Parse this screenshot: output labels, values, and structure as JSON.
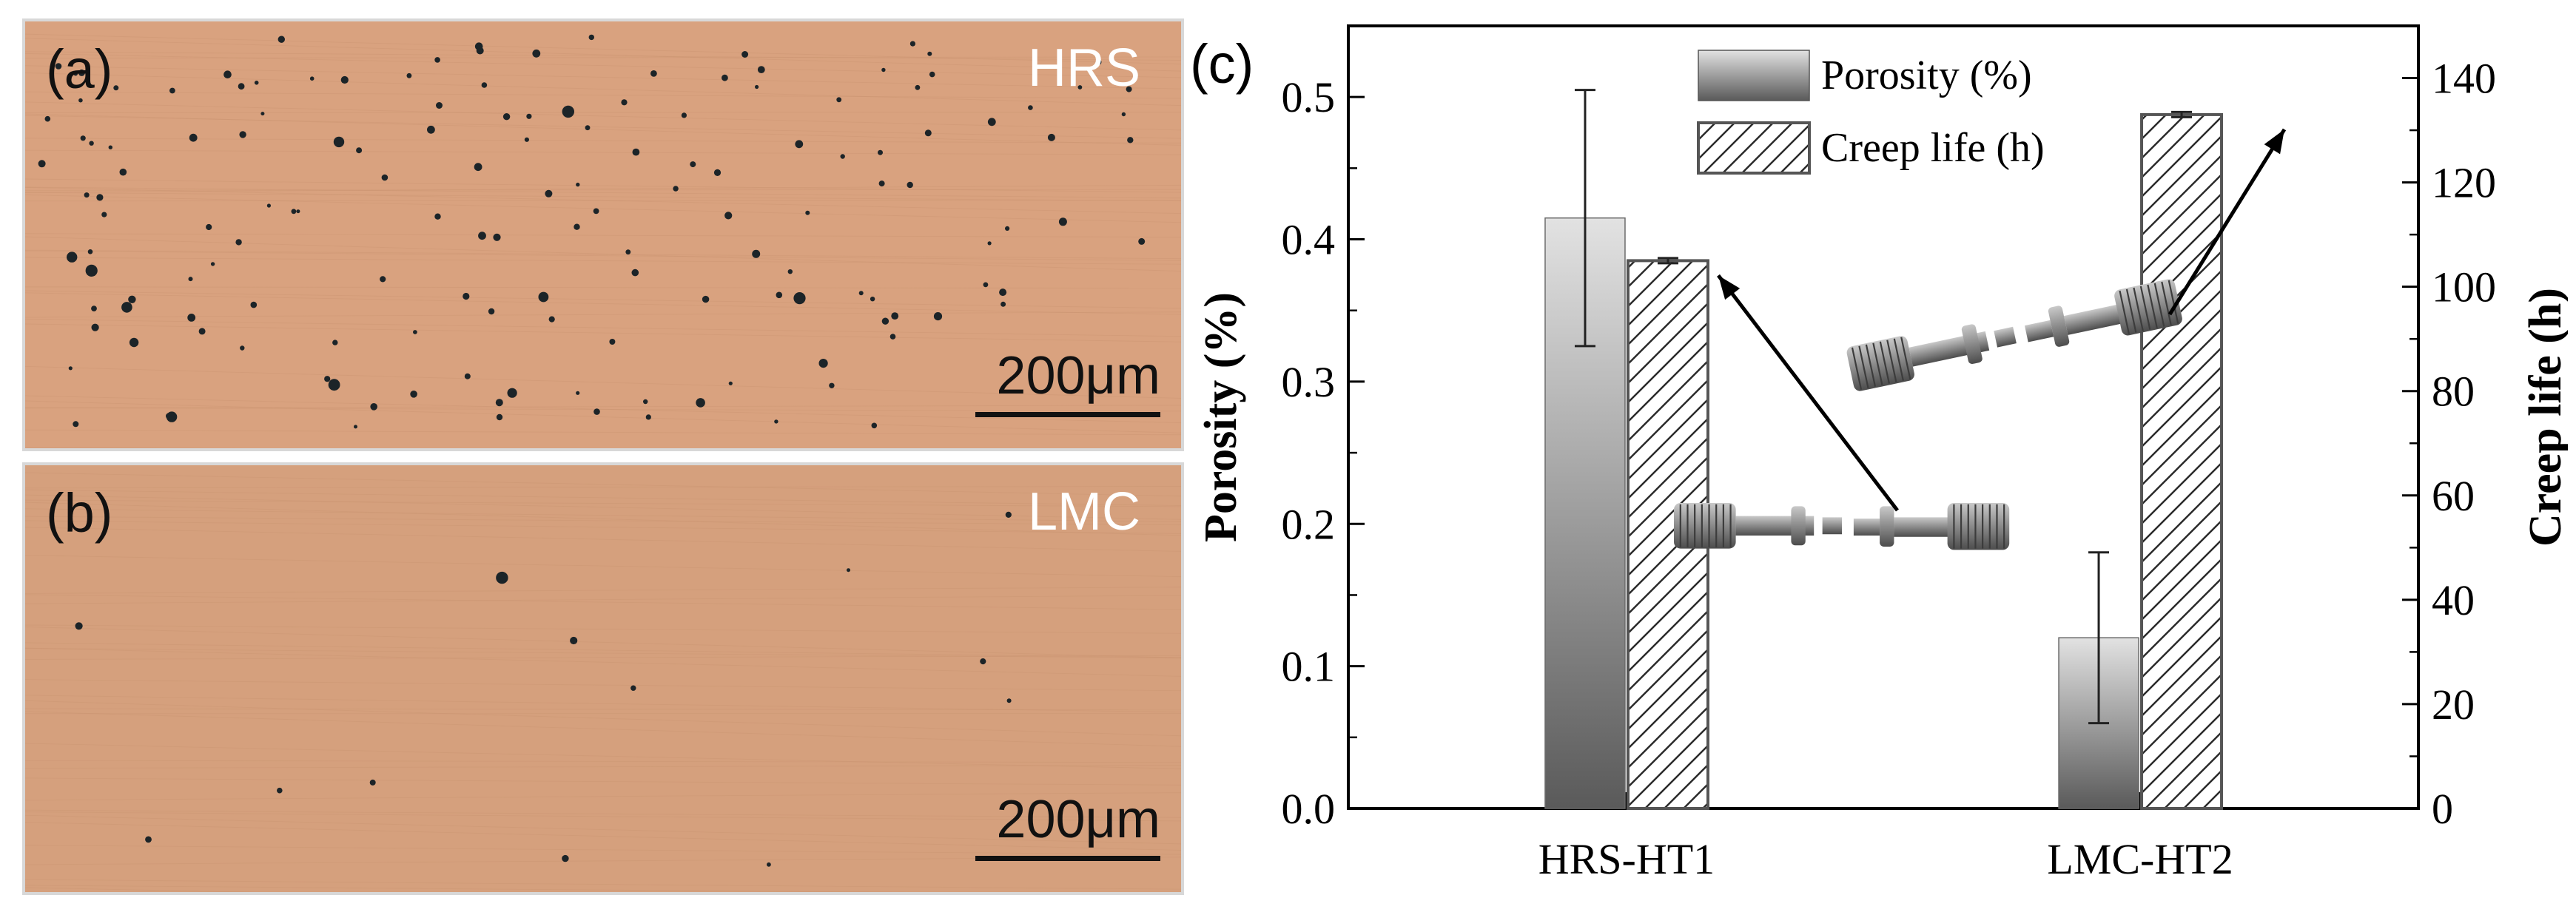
{
  "micrographs": [
    {
      "panel": "(a)",
      "sample": "HRS",
      "scale_bar": "200μm",
      "pore_level": "high"
    },
    {
      "panel": "(b)",
      "sample": "LMC",
      "scale_bar": "200μm",
      "pore_level": "low"
    }
  ],
  "colors": {
    "micrograph_base": "#d9a27f",
    "pore": "#1c2428",
    "gradient_top": "#e2e2e2",
    "gradient_bottom": "#5a5a5a"
  },
  "chart_data": {
    "panel_label": "(c)",
    "type": "bar",
    "categories": [
      "HRS-HT1",
      "LMC-HT2"
    ],
    "series": [
      {
        "name": "Porosity (%)",
        "axis": "left",
        "fill": "gradient-gray",
        "values": [
          0.415,
          0.12
        ],
        "errors": [
          0.09,
          0.06
        ]
      },
      {
        "name": "Creep life (h)",
        "axis": "right",
        "fill": "diagonal-hatch",
        "values": [
          105,
          133
        ],
        "errors": [
          0.5,
          0.5
        ]
      }
    ],
    "ylabel_left": "Porosity (%)",
    "ylabel_right": "Creep life (h)",
    "ylim_left": [
      0,
      0.55
    ],
    "ylim_right": [
      0,
      150
    ],
    "yticks_left": [
      "0.0",
      "0.1",
      "0.2",
      "0.3",
      "0.4",
      "0.5"
    ],
    "yticks_right": [
      "0",
      "20",
      "40",
      "60",
      "80",
      "100",
      "120",
      "140"
    ],
    "legend_position": "top-center",
    "grid": false,
    "annotations": [
      "fractured creep specimen image pointing to HRS-HT1 creep-life bar",
      "fractured creep specimen image pointing to LMC-HT2 creep-life bar"
    ]
  }
}
